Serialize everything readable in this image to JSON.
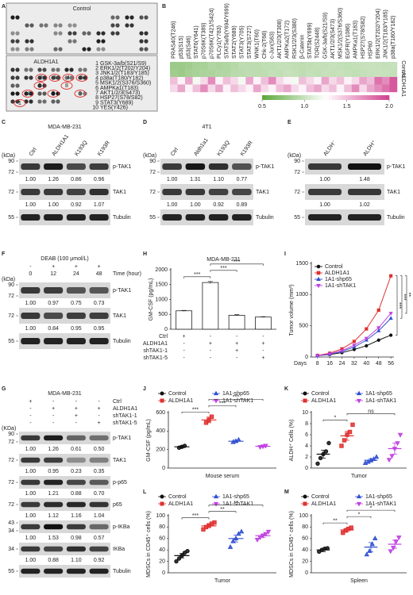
{
  "array_panel": {
    "label": "A",
    "top": "Control",
    "bottom": "ALDH1A1",
    "legend": [
      {
        "num": "1",
        "text": "GSK-3a/b(S21/S9)",
        "color": "#222222"
      },
      {
        "num": "2",
        "text": "ERK1/2(T202/Y204)",
        "color": "#d02020"
      },
      {
        "num": "3",
        "text": "JNK1/2(T183/Y185)",
        "color": "#d02020"
      },
      {
        "num": "4",
        "text": "p38a(T180/Y182)",
        "color": "#d02020"
      },
      {
        "num": "5",
        "text": "MSK1/2(S376/S360)",
        "color": "#222222"
      },
      {
        "num": "6",
        "text": "AMPKa1(T183)",
        "color": "#222222"
      },
      {
        "num": "7",
        "text": "AKT1/2/3(S473)",
        "color": "#222222"
      },
      {
        "num": "8",
        "text": "HSP27(S78/S82)",
        "color": "#222222"
      },
      {
        "num": "9",
        "text": "STAT3(Y689)",
        "color": "#222222"
      },
      {
        "num": "10",
        "text": "YES(Y426)",
        "color": "#222222"
      }
    ]
  },
  "heatmap": {
    "label": "B",
    "columns": [
      {
        "name": "PRAS40(T246)"
      },
      {
        "name": "p53(S15)"
      },
      {
        "name": "p53(S46)"
      },
      {
        "name": "STAT6(Y641)"
      },
      {
        "name": "p70S6K(T389)"
      },
      {
        "name": "p70S6K(T421/S424)"
      },
      {
        "name": "PLCy1(Y783)"
      },
      {
        "name": "STAT5a/b(Y694/Y699)"
      },
      {
        "name": "STAT2(Y689)"
      },
      {
        "name": "STAT3(Y705)"
      },
      {
        "name": "STAT3(S727)"
      },
      {
        "name": "WNK1(T60)"
      },
      {
        "name": "Chk-2(T68)"
      },
      {
        "name": "c-Jun(S63)"
      },
      {
        "name": "AKT1/2/3(T308)"
      },
      {
        "name": "AMPKa2(T172)"
      },
      {
        "name": "RSK1/2/3(S380)"
      },
      {
        "name": "β-Catenin"
      },
      {
        "name": "STAT5b(Y699)"
      },
      {
        "name": "TOR(S2448)"
      },
      {
        "name": "GSK-3a/b(S21/S9)"
      },
      {
        "name": "AKT1/2/3(S473)"
      },
      {
        "name": "MSK1/2(S376/S360)"
      },
      {
        "name": "EGFR(Y1086)"
      },
      {
        "name": "AMPKa1(T183)"
      },
      {
        "name": "HSP27(S78/S82)"
      },
      {
        "name": "HSP60"
      },
      {
        "name": "ERK1/2(T202/Y204)",
        "red": true
      },
      {
        "name": "JNK1/2(T183/Y185)",
        "red": true
      },
      {
        "name": "p38a(T180/Y182)",
        "red": true
      }
    ],
    "rows": [
      {
        "name": "Control",
        "values": [
          [
            0.8,
            0.8,
            0.82,
            0.85,
            0.85,
            0.9,
            0.88,
            0.9,
            0.92,
            0.95,
            0.95,
            0.95,
            0.97,
            0.97,
            0.98,
            0.98,
            0.97,
            0.96,
            0.97,
            0.98,
            0.98,
            0.99,
            0.98,
            0.97,
            0.98,
            0.99,
            1,
            0.99,
            0.98,
            0.99
          ],
          [
            0.82,
            0.8,
            0.84,
            0.86,
            0.87,
            0.88,
            0.9,
            0.9,
            0.93,
            0.94,
            0.96,
            0.95,
            0.96,
            0.98,
            0.97,
            0.99,
            0.98,
            0.96,
            0.98,
            0.97,
            0.99,
            0.98,
            0.99,
            0.98,
            0.97,
            0.98,
            0.99,
            1,
            0.99,
            0.98
          ]
        ]
      },
      {
        "name": "ALDH1A1",
        "values": [
          [
            1.5,
            1.3,
            1.6,
            1.2,
            1.4,
            1.7,
            1.3,
            1.5,
            1.4,
            1.2,
            1.6,
            1.3,
            1.5,
            1.7,
            1.4,
            1.3,
            1.2,
            1.5,
            1.4,
            1.3,
            1.6,
            1.4,
            1.5,
            1.3,
            1.4,
            1.6,
            1.5,
            1.8,
            1.7,
            1.9
          ],
          [
            1.4,
            1.6,
            1.3,
            1.5,
            1.7,
            1.4,
            1.6,
            1.3,
            1.5,
            1.4,
            1.3,
            1.6,
            1.4,
            1.3,
            1.5,
            1.6,
            1.4,
            1.3,
            1.5,
            1.6,
            1.4,
            1.5,
            1.3,
            1.5,
            1.7,
            1.4,
            1.6,
            1.7,
            1.8,
            1.9
          ]
        ]
      }
    ],
    "colors": [
      "#5aa83a",
      "#ffffff",
      "#d0408f"
    ],
    "range": [
      0.5,
      2
    ],
    "ticks": [
      0.5,
      {
        "value": 1,
        "label": "1.0"
      },
      1.5,
      {
        "value": 2,
        "label": "2.0"
      }
    ]
  },
  "blots": [
    {
      "label": "C",
      "title": "MDA-MB-231",
      "unit": "(kDa)",
      "lanes": [
        "Ctrl",
        "ALDH1A1",
        "K193Q",
        "K193R"
      ],
      "bands": [
        {
          "name": "p-TAK1",
          "kda": [
            "90",
            "72"
          ],
          "quant": [
            "1.00",
            "1.26",
            "0.86",
            "0.96"
          ]
        },
        {
          "name": "TAK1",
          "kda": [
            "72"
          ],
          "quant": [
            "1.00",
            "1.00",
            "0.92",
            "1.07"
          ]
        },
        {
          "name": "Tubulin",
          "kda": [
            "55"
          ]
        }
      ]
    },
    {
      "label": "D",
      "title": "4T1",
      "unit": "(kDa)",
      "lanes": [
        "Ctrl",
        "Aldh1a1",
        "K193Q",
        "K193R"
      ],
      "bands": [
        {
          "name": "p-TAK1",
          "kda": [
            "90",
            "72"
          ],
          "quant": [
            "1.00",
            "1.31",
            "1.10",
            "0.77"
          ]
        },
        {
          "name": "TAK1",
          "kda": [
            "72"
          ],
          "quant": [
            "1.00",
            "1.00",
            "0.92",
            "0.89"
          ]
        },
        {
          "name": "Tubulin",
          "kda": [
            "55"
          ]
        }
      ]
    },
    {
      "label": "E",
      "unit": "(kDa)",
      "lanes": [
        "ALDH⁻",
        "ALDH⁺"
      ],
      "bands": [
        {
          "name": "p-TAK1",
          "kda": [
            "90",
            "72"
          ],
          "quant": [
            "1.00",
            "1.48"
          ]
        },
        {
          "name": "TAK1",
          "kda": [
            "72"
          ],
          "quant": [
            "1.00",
            "1.02"
          ]
        },
        {
          "name": "Tubulin",
          "kda": [
            "55"
          ]
        }
      ]
    },
    {
      "label": "F",
      "title": "DEAB (100 μmol/L)",
      "unit": "(kDa)",
      "conditions": [
        {
          "marks": [
            "-",
            "+",
            "+",
            "+"
          ]
        },
        {
          "name": "Time (hour)",
          "marks": [
            "0",
            "12",
            "24",
            "48"
          ]
        }
      ],
      "bands": [
        {
          "name": "p-TAK1",
          "kda": [
            "90",
            "72"
          ],
          "quant": [
            "1.00",
            "0.97",
            "0.75",
            "0.73"
          ]
        },
        {
          "name": "TAK1",
          "kda": [
            "72"
          ],
          "quant": [
            "1.00",
            "0.84",
            "0.95",
            "0.95"
          ]
        },
        {
          "name": "Tubulin",
          "kda": [
            "55"
          ]
        }
      ]
    },
    {
      "label": "G",
      "title": "MDA-MB-231",
      "unit": "(KDa)",
      "conditions": [
        {
          "name": "Ctrl",
          "marks": [
            "+",
            "-",
            "-",
            "-"
          ]
        },
        {
          "name": "ALDH1A1",
          "marks": [
            "-",
            "+",
            "+",
            "+"
          ]
        },
        {
          "name": "shTAK1-1",
          "marks": [
            "-",
            "-",
            "+",
            "-"
          ]
        },
        {
          "name": "shTAK1-5",
          "marks": [
            "-",
            "-",
            "-",
            "+"
          ]
        }
      ],
      "bands": [
        {
          "name": "p-TAK1",
          "kda": [
            "90",
            "72"
          ],
          "quant": [
            "1.00",
            "1.26",
            "0.61",
            "0.50"
          ]
        },
        {
          "name": "TAK1",
          "kda": [
            "72"
          ],
          "quant": [
            "1.00",
            "0.95",
            "0.23",
            "0.35"
          ]
        },
        {
          "name": "p-p65",
          "kda": [
            "72"
          ],
          "quant": [
            "1.00",
            "1.21",
            "0.88",
            "0.70"
          ]
        },
        {
          "name": "p65",
          "kda": [
            "72"
          ],
          "quant": [
            "1.00",
            "1.12",
            "1.16",
            "1.04"
          ]
        },
        {
          "name": "p-IKBa",
          "kda": [
            "43",
            "34"
          ],
          "quant": [
            "1.00",
            "1.53",
            "0.98",
            "0.57"
          ]
        },
        {
          "name": "IKBa",
          "kda": [
            "34"
          ],
          "quant": [
            "1.00",
            "0.88",
            "1.10",
            "0.92"
          ]
        },
        {
          "name": "Tubulin",
          "kda": [
            "55"
          ]
        }
      ]
    }
  ],
  "chart_data": [
    {
      "type": "bar",
      "label": "H",
      "title": "MDA-MB-231",
      "ylabel": "GM-CSF (pg/mL)",
      "values": [
        620,
        1570,
        470,
        410
      ],
      "errors": [
        15,
        35,
        20,
        15
      ],
      "color": "#ffffff",
      "ylim": [
        0,
        2000
      ],
      "yticks": [
        0,
        500,
        1000,
        1500,
        2000
      ],
      "conditions": [
        {
          "name": "Ctrl",
          "marks": [
            "+",
            "-",
            "-",
            "-"
          ]
        },
        {
          "name": "ALDH1A1",
          "marks": [
            "-",
            "+",
            "+",
            "+"
          ]
        },
        {
          "name": "shTAK1-1",
          "marks": [
            "-",
            "-",
            "+",
            "-"
          ]
        },
        {
          "name": "shTAK1-5",
          "marks": [
            "-",
            "-",
            "-",
            "+"
          ]
        }
      ],
      "significance": [
        {
          "text": "***",
          "from": 0,
          "to": 1
        },
        {
          "text": "***",
          "from": 1,
          "to": 2
        },
        {
          "text": "***",
          "from": 1,
          "to": 3
        }
      ]
    },
    {
      "type": "line",
      "label": "I",
      "ylabel": "Tumor volume (mm³)",
      "xlabel": "Days",
      "x": [
        8,
        16,
        24,
        32,
        40,
        48,
        56
      ],
      "xlim": [
        4,
        58
      ],
      "xticks": [
        8,
        16,
        24,
        32,
        40,
        48,
        56
      ],
      "ylim": [
        0,
        1500
      ],
      "yticks": [
        0,
        500,
        1000,
        1500
      ],
      "series": [
        {
          "name": "Control",
          "color": "#111111",
          "values": [
            20,
            40,
            70,
            120,
            180,
            270,
            350
          ]
        },
        {
          "name": "ALDH1A1",
          "color": "#e03030",
          "values": [
            25,
            60,
            130,
            250,
            450,
            750,
            1300
          ]
        },
        {
          "name": "1A1-shp65",
          "color": "#3050d0",
          "values": [
            20,
            45,
            90,
            160,
            270,
            420,
            620
          ]
        },
        {
          "name": "1A1-shTAK1",
          "color": "#c040e0",
          "values": [
            20,
            50,
            100,
            190,
            300,
            470,
            700
          ]
        }
      ],
      "significance": [
        {
          "text": "***",
          "from": 0,
          "to": 1
        },
        {
          "text": "***",
          "from": 1,
          "to": 2
        },
        {
          "text": "**",
          "from": 1,
          "to": 3
        }
      ]
    },
    {
      "type": "dotbar",
      "label": "J",
      "ylabel": "GM-CSF (pg/mL)",
      "xlabel": "Mouse serum",
      "categories": [
        "Control",
        "ALDH1A1",
        "1A1-shp65",
        "1A1-shTAK1"
      ],
      "colors": [
        "#111111",
        "#e03030",
        "#3050d0",
        "#c040e0"
      ],
      "values": [
        230,
        520,
        290,
        235
      ],
      "errors": [
        10,
        30,
        12,
        8
      ],
      "points": [
        [
          220,
          230,
          240
        ],
        [
          490,
          520,
          555
        ],
        [
          280,
          290,
          305
        ],
        [
          228,
          235,
          242
        ]
      ],
      "ylim": [
        0,
        600
      ],
      "yticks": [
        0,
        200,
        400,
        600
      ],
      "significance": [
        {
          "text": "***",
          "from": 0,
          "to": 1
        },
        {
          "text": "***",
          "from": 1,
          "to": 2
        },
        {
          "text": "***",
          "from": 1,
          "to": 3
        }
      ]
    },
    {
      "type": "dotbar",
      "label": "K",
      "ylabel": "ALDH⁺ Cells (%)",
      "xlabel": "Tumor",
      "categories": [
        "Control",
        "ALDH1A1",
        "1A1-shp65",
        "1A1-shTAK1"
      ],
      "colors": [
        "#111111",
        "#e03030",
        "#3050d0",
        "#c040e0"
      ],
      "values": [
        2.5,
        5.8,
        1.4,
        3.5
      ],
      "errors": [
        0.7,
        0.8,
        0.3,
        1.0
      ],
      "points": [
        [
          0.8,
          1.8,
          2.5,
          3,
          4.5
        ],
        [
          4,
          5,
          6,
          6.5,
          7.8
        ],
        [
          0.9,
          1.1,
          1.4,
          1.6,
          2
        ],
        [
          1.5,
          2.2,
          3.5,
          4.5,
          6
        ]
      ],
      "ylim": [
        0,
        10
      ],
      "yticks": [
        0,
        2,
        4,
        6,
        8,
        10
      ],
      "significance": [
        {
          "text": "*",
          "from": 0,
          "to": 1
        },
        {
          "text": "ns",
          "from": 1,
          "to": 3
        }
      ]
    },
    {
      "type": "dotbar",
      "label": "L",
      "ylabel": "MDSCs in CD45⁺ cells (%)",
      "xlabel": "Tumor",
      "categories": [
        "Control",
        "ALDH1A1",
        "1A1-shp65",
        "1A1-shTAK1"
      ],
      "colors": [
        "#111111",
        "#e03030",
        "#3050d0",
        "#c040e0"
      ],
      "values": [
        30,
        82,
        60,
        65
      ],
      "errors": [
        4,
        3,
        6,
        3
      ],
      "points": [
        [
          20,
          25,
          30,
          35,
          38
        ],
        [
          76,
          80,
          83,
          86,
          88
        ],
        [
          45,
          55,
          60,
          68,
          72
        ],
        [
          58,
          62,
          65,
          68,
          72
        ]
      ],
      "ylim": [
        0,
        100
      ],
      "yticks": [
        0,
        20,
        40,
        60,
        80,
        100
      ],
      "significance": [
        {
          "text": "***",
          "from": 0,
          "to": 1
        },
        {
          "text": "**",
          "from": 1,
          "to": 2
        },
        {
          "text": "**",
          "from": 1,
          "to": 3
        }
      ]
    },
    {
      "type": "dotbar",
      "label": "M",
      "ylabel": "MDSCs in CD45⁺ cells (%)",
      "xlabel": "Spleen",
      "categories": [
        "Control",
        "ALDH1A1",
        "1A1-shp65",
        "1A1-shTAK1"
      ],
      "colors": [
        "#111111",
        "#e03030",
        "#3050d0",
        "#c040e0"
      ],
      "values": [
        40,
        75,
        45,
        50
      ],
      "errors": [
        3,
        3,
        8,
        7
      ],
      "points": [
        [
          37,
          40,
          42,
          43
        ],
        [
          70,
          74,
          77,
          79
        ],
        [
          32,
          38,
          50,
          60
        ],
        [
          38,
          44,
          55,
          62
        ]
      ],
      "ylim": [
        0,
        100
      ],
      "yticks": [
        0,
        20,
        40,
        60,
        80,
        100
      ],
      "significance": [
        {
          "text": "**",
          "from": 0,
          "to": 1
        },
        {
          "text": "*",
          "from": 1,
          "to": 2
        },
        {
          "text": "*",
          "from": 1,
          "to": 3
        }
      ]
    }
  ]
}
